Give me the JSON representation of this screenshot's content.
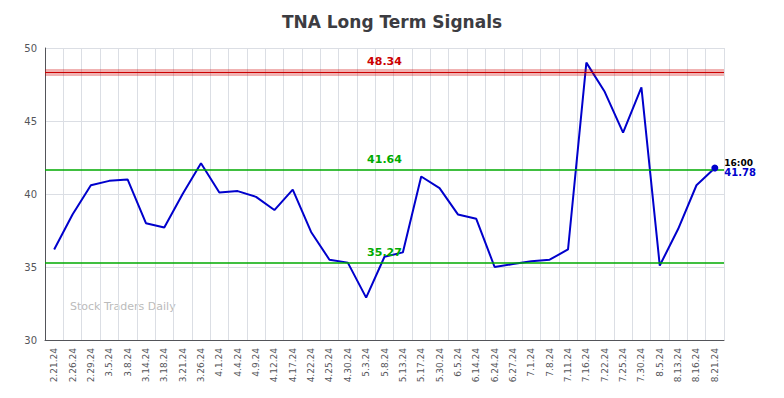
{
  "chart_data": {
    "type": "line",
    "title": "TNA Long Term Signals",
    "categories": [
      "2.21.24",
      "2.26.24",
      "2.29.24",
      "3.5.24",
      "3.8.24",
      "3.14.24",
      "3.18.24",
      "3.21.24",
      "3.26.24",
      "4.1.24",
      "4.4.24",
      "4.9.24",
      "4.12.24",
      "4.17.24",
      "4.22.24",
      "4.25.24",
      "4.30.24",
      "5.3.24",
      "5.8.24",
      "5.13.24",
      "5.17.24",
      "5.30.24",
      "6.5.24",
      "6.14.24",
      "6.24.24",
      "6.27.24",
      "7.1.24",
      "7.8.24",
      "7.11.24",
      "7.16.24",
      "7.22.24",
      "7.25.24",
      "7.30.24",
      "8.5.24",
      "8.13.24",
      "8.16.24",
      "8.21.24"
    ],
    "values": [
      36.2,
      38.6,
      40.6,
      40.9,
      41.0,
      38.0,
      37.7,
      40.0,
      42.1,
      40.1,
      40.2,
      39.8,
      38.9,
      40.3,
      37.4,
      35.5,
      35.3,
      32.9,
      35.7,
      36.0,
      41.2,
      40.4,
      38.6,
      38.3,
      35.0,
      35.2,
      35.4,
      35.5,
      36.2,
      49.0,
      47.0,
      44.2,
      47.3,
      35.1,
      37.6,
      40.6,
      41.78
    ],
    "color": "#0000cc",
    "ylim": [
      30,
      50
    ],
    "yticks": [
      30,
      35,
      40,
      45,
      50
    ],
    "grid": true,
    "reference_lines": [
      {
        "value": 48.34,
        "label": "48.34",
        "color": "#cc0000",
        "line_style": "band"
      },
      {
        "value": 41.64,
        "label": "41.64",
        "color": "#00aa00",
        "line_style": "solid"
      },
      {
        "value": 35.27,
        "label": "35.27",
        "color": "#00aa00",
        "line_style": "solid"
      }
    ],
    "last_point": {
      "value": 41.78,
      "label": "41.78",
      "time_label": "16:00"
    },
    "watermark": "Stock Traders Daily"
  }
}
